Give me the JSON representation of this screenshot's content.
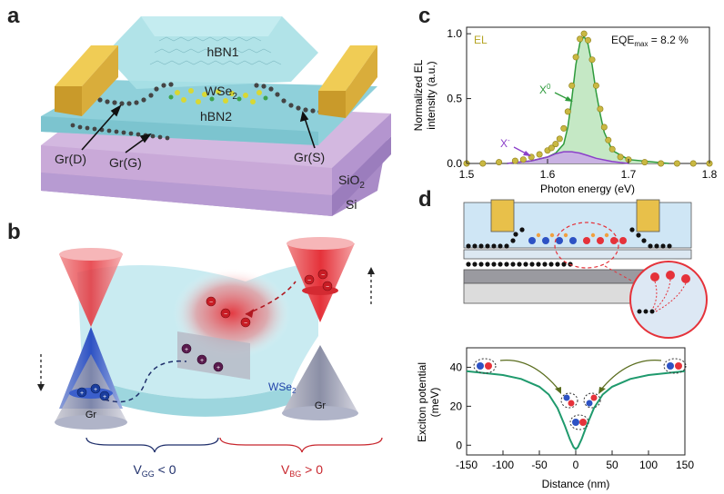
{
  "panels": {
    "a": {
      "letter": "a",
      "labels": {
        "hbn1": "hBN1",
        "wse2": "WSe",
        "wse2_sub": "2",
        "hbn2": "hBN2",
        "gr_d": "Gr(D)",
        "gr_g": "Gr(G)",
        "gr_s": "Gr(S)",
        "sio2": "SiO",
        "sio2_sub": "2",
        "si": "Si"
      }
    },
    "b": {
      "letter": "b",
      "labels": {
        "wse2": "WSe",
        "wse2_sub": "2",
        "gr_left": "Gr",
        "gr_right": "Gr",
        "vgg_main": "V",
        "vgg_sub": "GG",
        "vgg_cond": " < 0",
        "vbg_main": "V",
        "vbg_sub": "BG",
        "vbg_cond": " > 0"
      }
    },
    "c": {
      "letter": "c",
      "labels": {
        "el": "EL",
        "eqe_prefix": "EQE",
        "eqe_sub": "max",
        "eqe_suffix": " = 8.2 %",
        "x0": "X",
        "x0_sup": "0",
        "xminus": "X",
        "xminus_sup": "-"
      }
    },
    "d": {
      "letter": "d"
    }
  },
  "colors": {
    "el": "#b5a423",
    "x0": "#2e9b3c",
    "x0_fill": "#bfe6bf",
    "xminus": "#8b3fc9",
    "potential": "#1f9a6d",
    "gold": "#e8c04a",
    "hbn": "#a8dde3",
    "sio2": "#c9a9d8",
    "si": "#a98bc7",
    "red": "#e5323a",
    "blue": "#2d52c4"
  },
  "chart_data": [
    {
      "type": "line",
      "panel": "c",
      "xlabel": "Photon energy (eV)",
      "ylabel": "Normalized  EL intensity (a.u.)",
      "ylabel_lines": [
        "Normalized  EL",
        "intensity (a.u.)"
      ],
      "xlim": [
        1.5,
        1.8
      ],
      "ylim": [
        0,
        1.05
      ],
      "xticks": [
        1.5,
        1.6,
        1.7,
        1.8
      ],
      "xtick_labels": [
        "1.5",
        "1.6",
        "1.7",
        "1.8"
      ],
      "yticks": [
        0.0,
        0.5,
        1.0
      ],
      "ytick_labels": [
        "0.0",
        "0.5",
        "1.0"
      ],
      "series": [
        {
          "name": "EL",
          "style": "markers",
          "x": [
            1.5,
            1.52,
            1.54,
            1.56,
            1.57,
            1.58,
            1.59,
            1.6,
            1.605,
            1.61,
            1.615,
            1.62,
            1.625,
            1.63,
            1.635,
            1.64,
            1.645,
            1.65,
            1.655,
            1.66,
            1.665,
            1.67,
            1.675,
            1.68,
            1.69,
            1.7,
            1.72,
            1.74,
            1.76,
            1.78,
            1.8
          ],
          "y": [
            0.0,
            0.0,
            0.01,
            0.02,
            0.03,
            0.05,
            0.07,
            0.1,
            0.12,
            0.15,
            0.19,
            0.27,
            0.4,
            0.6,
            0.82,
            0.96,
            1.0,
            0.95,
            0.8,
            0.6,
            0.42,
            0.28,
            0.18,
            0.11,
            0.05,
            0.03,
            0.01,
            0.0,
            0.0,
            0.0,
            0.0
          ]
        },
        {
          "name": "X0",
          "x": [
            1.55,
            1.58,
            1.6,
            1.61,
            1.62,
            1.625,
            1.63,
            1.635,
            1.64,
            1.645,
            1.65,
            1.655,
            1.66,
            1.665,
            1.67,
            1.68,
            1.7,
            1.75
          ],
          "y": [
            0.0,
            0.02,
            0.05,
            0.08,
            0.15,
            0.28,
            0.5,
            0.76,
            0.93,
            0.98,
            0.92,
            0.76,
            0.55,
            0.38,
            0.24,
            0.1,
            0.03,
            0.0
          ]
        },
        {
          "name": "X-",
          "x": [
            1.55,
            1.58,
            1.6,
            1.61,
            1.62,
            1.63,
            1.64,
            1.65,
            1.66,
            1.68,
            1.7
          ],
          "y": [
            0.0,
            0.02,
            0.05,
            0.075,
            0.09,
            0.09,
            0.08,
            0.06,
            0.04,
            0.015,
            0.0
          ]
        }
      ]
    },
    {
      "type": "line",
      "panel": "d",
      "xlabel": "Distance (nm)",
      "ylabel": "Exciton potential (meV)",
      "ylabel_lines": [
        "Exciton potential",
        "(meV)"
      ],
      "xlim": [
        -150,
        150
      ],
      "ylim": [
        -5,
        50
      ],
      "xticks": [
        -150,
        -100,
        -50,
        0,
        50,
        100,
        150
      ],
      "xtick_labels": [
        "-150",
        "-100",
        "-50",
        "0",
        "50",
        "100",
        "150"
      ],
      "yticks": [
        0,
        20,
        40
      ],
      "ytick_labels": [
        "0",
        "20",
        "40"
      ],
      "series": [
        {
          "name": "potential",
          "x": [
            -150,
            -125,
            -100,
            -75,
            -50,
            -37,
            -25,
            -15,
            -8,
            -3,
            0,
            3,
            8,
            15,
            25,
            37,
            50,
            75,
            100,
            125,
            150
          ],
          "y": [
            38,
            37,
            36,
            34,
            30,
            26,
            19,
            10,
            3,
            -1,
            -2,
            -1,
            3,
            10,
            19,
            26,
            30,
            34,
            36,
            37,
            38
          ]
        }
      ]
    }
  ]
}
